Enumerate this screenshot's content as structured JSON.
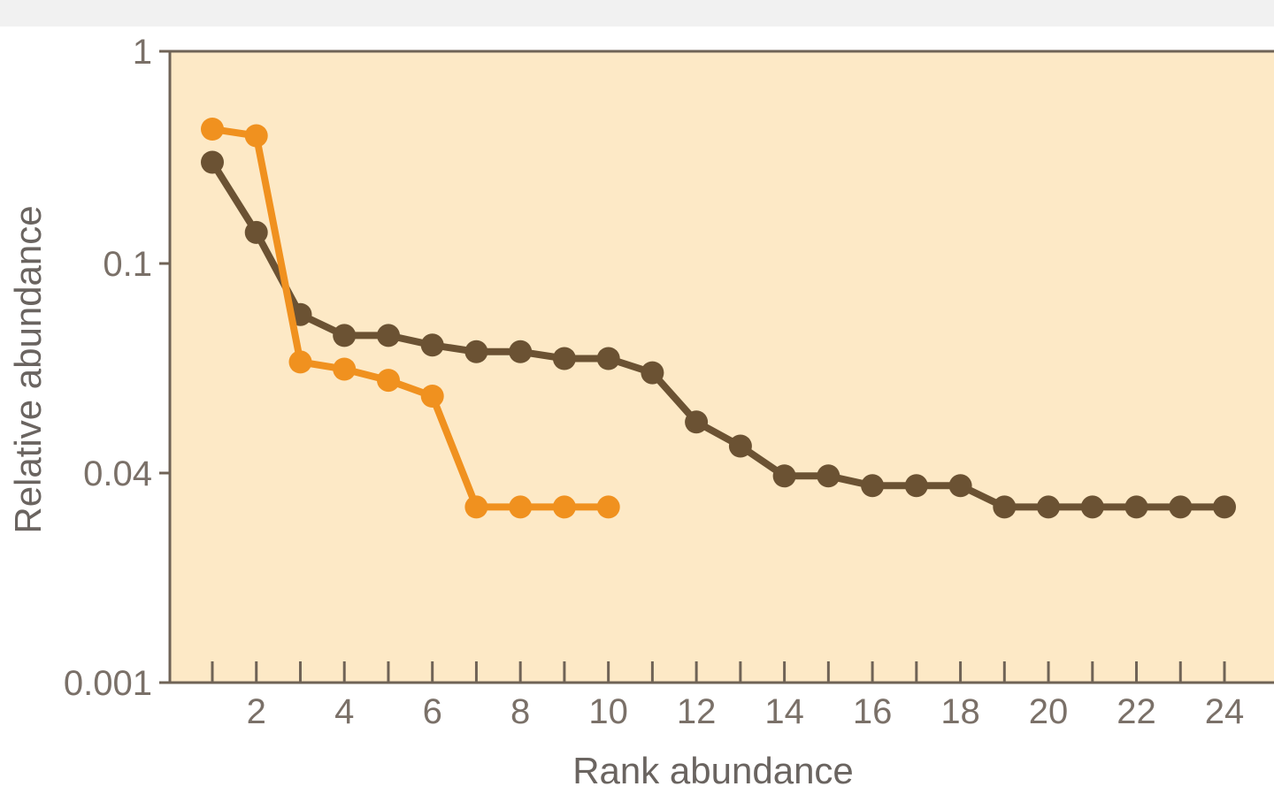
{
  "chart_data": {
    "type": "line",
    "title": "",
    "xlabel": "Rank abundance",
    "ylabel": "Relative abundance",
    "yscale": "log",
    "grid": false,
    "legend": "none",
    "x_ticks": [
      2,
      4,
      6,
      8,
      10,
      12,
      14,
      16,
      18,
      20,
      22,
      24
    ],
    "x_tick_labels": [
      "2",
      "4",
      "6",
      "8",
      "10",
      "12",
      "14",
      "16",
      "18",
      "20",
      "22",
      "24"
    ],
    "x_minor_ticks": [
      1,
      3,
      5,
      7,
      9,
      11,
      13,
      15,
      17,
      19,
      21,
      23
    ],
    "xlim": [
      0,
      25
    ],
    "y_ticks": [
      1,
      0.1,
      0.04,
      0.001
    ],
    "y_tick_labels": [
      "1",
      "0.1",
      "0.04",
      "0.001"
    ],
    "series": [
      {
        "color": "#6b5233",
        "x": [
          1,
          2,
          3,
          4,
          5,
          6,
          7,
          8,
          9,
          10,
          11,
          12,
          13,
          14,
          15,
          16,
          17,
          18,
          19,
          20,
          21,
          22,
          23,
          24
        ],
        "values": [
          0.3,
          0.14,
          0.08,
          0.073,
          0.073,
          0.07,
          0.068,
          0.068,
          0.066,
          0.066,
          0.062,
          0.05,
          0.045,
          0.038,
          0.038,
          0.032,
          0.032,
          0.032,
          0.022,
          0.022,
          0.022,
          0.022,
          0.022,
          0.022
        ]
      },
      {
        "color": "#f0911f",
        "x": [
          1,
          2,
          3,
          4,
          5,
          6,
          7,
          8,
          9,
          10
        ],
        "values": [
          0.43,
          0.4,
          0.065,
          0.063,
          0.06,
          0.056,
          0.022,
          0.022,
          0.022,
          0.022
        ]
      }
    ]
  },
  "colors": {
    "plot_background": "#fde9c6",
    "axis": "#6f6356",
    "tick_text": "#7a7068",
    "label_text": "#6a6460"
  }
}
